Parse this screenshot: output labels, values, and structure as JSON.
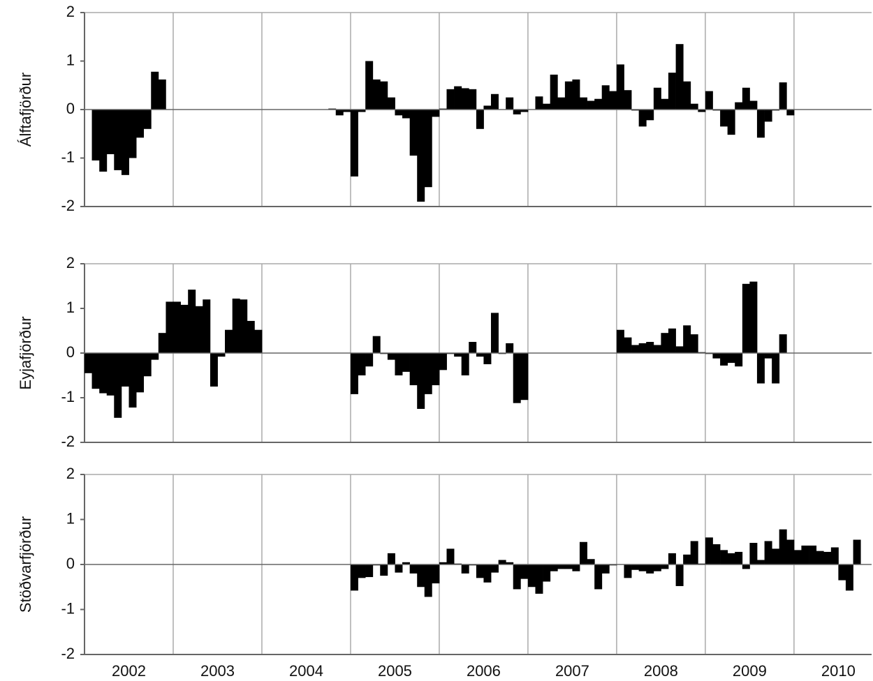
{
  "chart_data": {
    "type": "bar",
    "x": [
      2002,
      2002.083,
      2002.167,
      2002.25,
      2002.333,
      2002.417,
      2002.5,
      2002.583,
      2002.667,
      2002.75,
      2002.833,
      2002.917,
      2003,
      2003.083,
      2003.167,
      2003.25,
      2003.333,
      2003.417,
      2003.5,
      2003.583,
      2003.667,
      2003.75,
      2003.833,
      2003.917,
      2004,
      2004.083,
      2004.167,
      2004.25,
      2004.333,
      2004.417,
      2004.5,
      2004.583,
      2004.667,
      2004.75,
      2004.833,
      2004.917,
      2005,
      2005.083,
      2005.167,
      2005.25,
      2005.333,
      2005.417,
      2005.5,
      2005.583,
      2005.667,
      2005.75,
      2005.833,
      2005.917,
      2006,
      2006.083,
      2006.167,
      2006.25,
      2006.333,
      2006.417,
      2006.5,
      2006.583,
      2006.667,
      2006.75,
      2006.833,
      2006.917,
      2007,
      2007.083,
      2007.167,
      2007.25,
      2007.333,
      2007.417,
      2007.5,
      2007.583,
      2007.667,
      2007.75,
      2007.833,
      2007.917,
      2008,
      2008.083,
      2008.167,
      2008.25,
      2008.333,
      2008.417,
      2008.5,
      2008.583,
      2008.667,
      2008.75,
      2008.833,
      2008.917,
      2009,
      2009.083,
      2009.167,
      2009.25,
      2009.333,
      2009.417,
      2009.5,
      2009.583,
      2009.667,
      2009.75,
      2009.833,
      2009.917,
      2010,
      2010.083,
      2010.167,
      2010.25,
      2010.333,
      2010.417,
      2010.5,
      2010.583,
      2010.667,
      2010.75
    ],
    "xlim": [
      2002,
      2010.875
    ],
    "xticks": [
      {
        "value": 2002.5,
        "label": "2002"
      },
      {
        "value": 2003.5,
        "label": "2003"
      },
      {
        "value": 2004.5,
        "label": "2004"
      },
      {
        "value": 2005.5,
        "label": "2005"
      },
      {
        "value": 2006.5,
        "label": "2006"
      },
      {
        "value": 2007.5,
        "label": "2007"
      },
      {
        "value": 2008.5,
        "label": "2008"
      },
      {
        "value": 2009.5,
        "label": "2009"
      },
      {
        "value": 2010.5,
        "label": "2010"
      }
    ],
    "xgrid": [
      2003,
      2004,
      2005,
      2006,
      2007,
      2008,
      2009,
      2010
    ],
    "ylim": [
      -2,
      2
    ],
    "yticks": [
      -2,
      -1,
      0,
      1,
      2
    ],
    "series": [
      {
        "name": "Álftafjörður",
        "color": "#000000",
        "values": [
          null,
          -1.05,
          -1.28,
          -0.92,
          -1.25,
          -1.35,
          -1.0,
          -0.58,
          -0.4,
          0.78,
          0.62,
          null,
          null,
          null,
          null,
          null,
          null,
          null,
          null,
          null,
          null,
          null,
          null,
          null,
          null,
          null,
          null,
          null,
          null,
          null,
          null,
          null,
          null,
          0.02,
          -0.12,
          -0.05,
          -1.38,
          -0.05,
          1.0,
          0.62,
          0.58,
          0.25,
          -0.12,
          -0.18,
          -0.95,
          -1.9,
          -1.6,
          -0.15,
          0.02,
          0.42,
          0.48,
          0.44,
          0.42,
          -0.4,
          0.08,
          0.32,
          0.0,
          0.25,
          -0.1,
          -0.05,
          0.0,
          0.27,
          0.12,
          0.72,
          0.25,
          0.58,
          0.62,
          0.25,
          0.18,
          0.22,
          0.5,
          0.38,
          0.93,
          0.4,
          -0.02,
          -0.35,
          -0.22,
          0.45,
          0.22,
          0.76,
          1.35,
          0.58,
          0.12,
          -0.05,
          0.38,
          -0.02,
          -0.35,
          -0.52,
          0.15,
          0.45,
          0.18,
          -0.58,
          -0.25,
          -0.02,
          0.56,
          -0.12,
          null,
          null,
          null,
          null,
          null,
          null,
          null,
          null,
          null,
          null
        ]
      },
      {
        "name": "Eyjafjörður",
        "color": "#000000",
        "values": [
          -0.45,
          -0.8,
          -0.9,
          -0.95,
          -1.45,
          -0.75,
          -1.22,
          -0.88,
          -0.52,
          -0.15,
          0.45,
          1.15,
          1.15,
          1.08,
          1.42,
          1.05,
          1.2,
          -0.75,
          -0.08,
          0.52,
          1.22,
          1.2,
          0.72,
          0.52,
          null,
          null,
          null,
          null,
          null,
          null,
          null,
          null,
          null,
          null,
          null,
          null,
          -0.92,
          -0.5,
          -0.3,
          0.38,
          -0.02,
          -0.15,
          -0.5,
          -0.42,
          -0.72,
          -1.25,
          -0.92,
          -0.72,
          -0.38,
          -0.02,
          -0.08,
          -0.5,
          0.25,
          -0.08,
          -0.25,
          0.9,
          -0.02,
          0.22,
          -1.12,
          -1.05,
          null,
          null,
          null,
          null,
          null,
          null,
          null,
          null,
          null,
          null,
          null,
          null,
          0.52,
          0.35,
          0.18,
          0.22,
          0.25,
          0.18,
          0.45,
          0.55,
          0.15,
          0.62,
          0.42,
          0.02,
          -0.02,
          -0.12,
          -0.28,
          -0.22,
          -0.3,
          1.55,
          1.6,
          -0.68,
          -0.12,
          -0.68,
          0.42,
          null,
          null,
          null,
          null,
          null,
          null,
          null,
          null,
          null,
          null,
          null
        ]
      },
      {
        "name": "Stöðvarfjörður",
        "color": "#000000",
        "values": [
          null,
          null,
          null,
          null,
          null,
          null,
          null,
          null,
          null,
          null,
          null,
          null,
          null,
          null,
          null,
          null,
          null,
          null,
          null,
          null,
          null,
          null,
          null,
          null,
          null,
          null,
          null,
          null,
          null,
          null,
          null,
          null,
          null,
          null,
          null,
          null,
          -0.58,
          -0.3,
          -0.28,
          -0.02,
          -0.25,
          0.25,
          -0.18,
          0.05,
          -0.2,
          -0.5,
          -0.72,
          -0.42,
          0.05,
          0.35,
          0.02,
          -0.2,
          -0.02,
          -0.3,
          -0.4,
          -0.18,
          0.1,
          0.05,
          -0.55,
          -0.32,
          -0.5,
          -0.65,
          -0.38,
          -0.15,
          -0.1,
          -0.1,
          -0.15,
          0.5,
          0.12,
          -0.55,
          -0.2,
          -0.02,
          0.0,
          -0.3,
          -0.12,
          -0.15,
          -0.2,
          -0.15,
          -0.1,
          0.25,
          -0.48,
          0.22,
          0.52,
          0.02,
          0.6,
          0.45,
          0.32,
          0.25,
          0.28,
          -0.1,
          0.48,
          0.1,
          0.52,
          0.35,
          0.78,
          0.55,
          0.32,
          0.42,
          0.42,
          0.3,
          0.28,
          0.38,
          -0.35,
          -0.58,
          0.55,
          null
        ]
      }
    ]
  }
}
